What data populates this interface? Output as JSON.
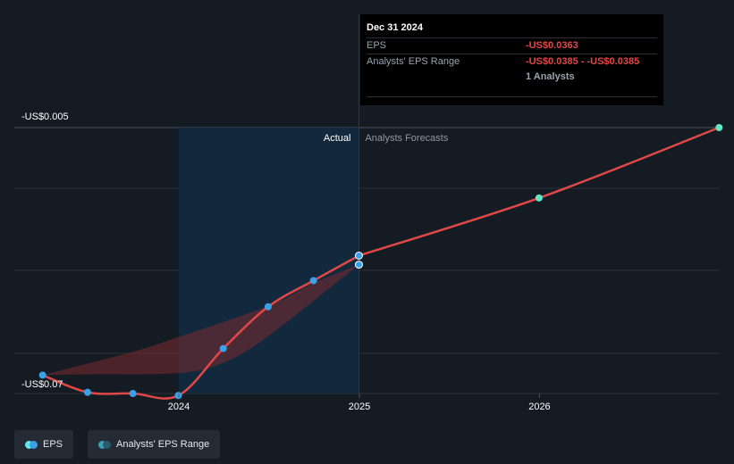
{
  "colors": {
    "background": "#151b23",
    "line": "#e04848",
    "dot_actual": "#3aa0e8",
    "dot_forecast": "#5ee8c8",
    "grid": "#2a3039",
    "actual_band": "#12283c"
  },
  "chart_data": {
    "type": "line",
    "title": "",
    "xlabel": "",
    "ylabel": "",
    "ylim": [
      -0.07,
      -0.005
    ],
    "y_tick_labels": [
      "-US$0.005",
      "-US$0.07"
    ],
    "x_tick_labels": [
      "2024",
      "2025",
      "2026"
    ],
    "region_labels": {
      "actual": "Actual",
      "forecast": "Analysts Forecasts"
    },
    "series": [
      {
        "name": "EPS",
        "points": [
          {
            "x": "2023-03-31",
            "y": -0.0655
          },
          {
            "x": "2023-06-30",
            "y": -0.0697
          },
          {
            "x": "2023-09-30",
            "y": -0.07
          },
          {
            "x": "2023-12-31",
            "y": -0.0705
          },
          {
            "x": "2024-03-31",
            "y": -0.059
          },
          {
            "x": "2024-06-30",
            "y": -0.0488
          },
          {
            "x": "2024-09-30",
            "y": -0.0424
          },
          {
            "x": "2024-12-31",
            "y": -0.0363
          }
        ]
      },
      {
        "name": "EPS Forecast",
        "points": [
          {
            "x": "2024-12-31",
            "y": -0.0363
          },
          {
            "x": "2025-12-31",
            "y": -0.0222
          },
          {
            "x": "2026-12-31",
            "y": -0.005
          }
        ]
      },
      {
        "name": "Analysts' EPS Range",
        "upper": [
          {
            "x": "2023-03-31",
            "y": -0.0655
          },
          {
            "x": "2023-09-30",
            "y": -0.0598
          },
          {
            "x": "2023-12-31",
            "y": -0.0562
          },
          {
            "x": "2024-06-30",
            "y": -0.0486
          },
          {
            "x": "2024-09-30",
            "y": -0.043
          },
          {
            "x": "2024-12-31",
            "y": -0.0385
          }
        ],
        "lower": [
          {
            "x": "2024-12-31",
            "y": -0.0385
          },
          {
            "x": "2024-06-30",
            "y": -0.056
          },
          {
            "x": "2024-03-31",
            "y": -0.0625
          },
          {
            "x": "2023-12-31",
            "y": -0.065
          },
          {
            "x": "2023-06-30",
            "y": -0.0653
          },
          {
            "x": "2023-03-31",
            "y": -0.0655
          }
        ]
      }
    ],
    "highlight": {
      "x": "2024-12-31",
      "eps": -0.0363,
      "range_low": -0.0385,
      "range_high": -0.0385
    }
  },
  "tooltip": {
    "date": "Dec 31 2024",
    "eps_label": "EPS",
    "eps_value": "-US$0.0363",
    "range_label": "Analysts' EPS Range",
    "range_value": "-US$0.0385 - -US$0.0385",
    "analysts": "1 Analysts"
  },
  "legend": {
    "eps_label": "EPS",
    "range_label": "Analysts' EPS Range",
    "eps_colors": [
      "#5ee8f0",
      "#3aa0e8"
    ],
    "range_colors": [
      "#3aa0b8",
      "#2a5a6a"
    ]
  }
}
